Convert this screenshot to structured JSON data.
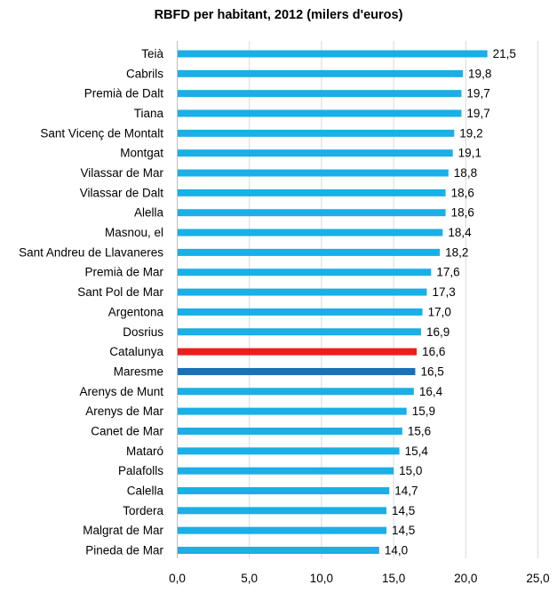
{
  "chart_data": {
    "type": "bar",
    "orientation": "horizontal",
    "title": "RBFD per habitant, 2012 (milers d'euros)",
    "xlabel": "",
    "ylabel": "",
    "xlim": [
      0,
      25
    ],
    "ticks": [
      "0,0",
      "5,0",
      "10,0",
      "15,0",
      "20,0",
      "25,0"
    ],
    "tick_values": [
      0,
      5,
      10,
      15,
      20,
      25
    ],
    "grid": true,
    "colors": {
      "default": "#1AAFE6",
      "highlight_catalunya": "#EE1C1C",
      "highlight_maresme": "#1B6FB5",
      "grid": "#D9D9D9"
    },
    "categories": [
      "Teià",
      "Cabrils",
      "Premià de Dalt",
      "Tiana",
      "Sant Vicenç de Montalt",
      "Montgat",
      "Vilassar de Mar",
      "Vilassar de Dalt",
      "Alella",
      "Masnou, el",
      "Sant Andreu de Llavaneres",
      "Premià de Mar",
      "Sant Pol de Mar",
      "Argentona",
      "Dosrius",
      "Catalunya",
      "Maresme",
      "Arenys de Munt",
      "Arenys de Mar",
      "Canet de Mar",
      "Mataró",
      "Palafolls",
      "Calella",
      "Tordera",
      "Malgrat de Mar",
      "Pineda de Mar"
    ],
    "values": [
      21.5,
      19.8,
      19.7,
      19.7,
      19.2,
      19.1,
      18.8,
      18.6,
      18.6,
      18.4,
      18.2,
      17.6,
      17.3,
      17.0,
      16.9,
      16.6,
      16.5,
      16.4,
      15.9,
      15.6,
      15.4,
      15.0,
      14.7,
      14.5,
      14.5,
      14.0
    ],
    "value_labels": [
      "21,5",
      "19,8",
      "19,7",
      "19,7",
      "19,2",
      "19,1",
      "18,8",
      "18,6",
      "18,6",
      "18,4",
      "18,2",
      "17,6",
      "17,3",
      "17,0",
      "16,9",
      "16,6",
      "16,5",
      "16,4",
      "15,9",
      "15,6",
      "15,4",
      "15,0",
      "14,7",
      "14,5",
      "14,5",
      "14,0"
    ],
    "bar_colors": [
      "default",
      "default",
      "default",
      "default",
      "default",
      "default",
      "default",
      "default",
      "default",
      "default",
      "default",
      "default",
      "default",
      "default",
      "default",
      "highlight_catalunya",
      "highlight_maresme",
      "default",
      "default",
      "default",
      "default",
      "default",
      "default",
      "default",
      "default",
      "default"
    ]
  }
}
